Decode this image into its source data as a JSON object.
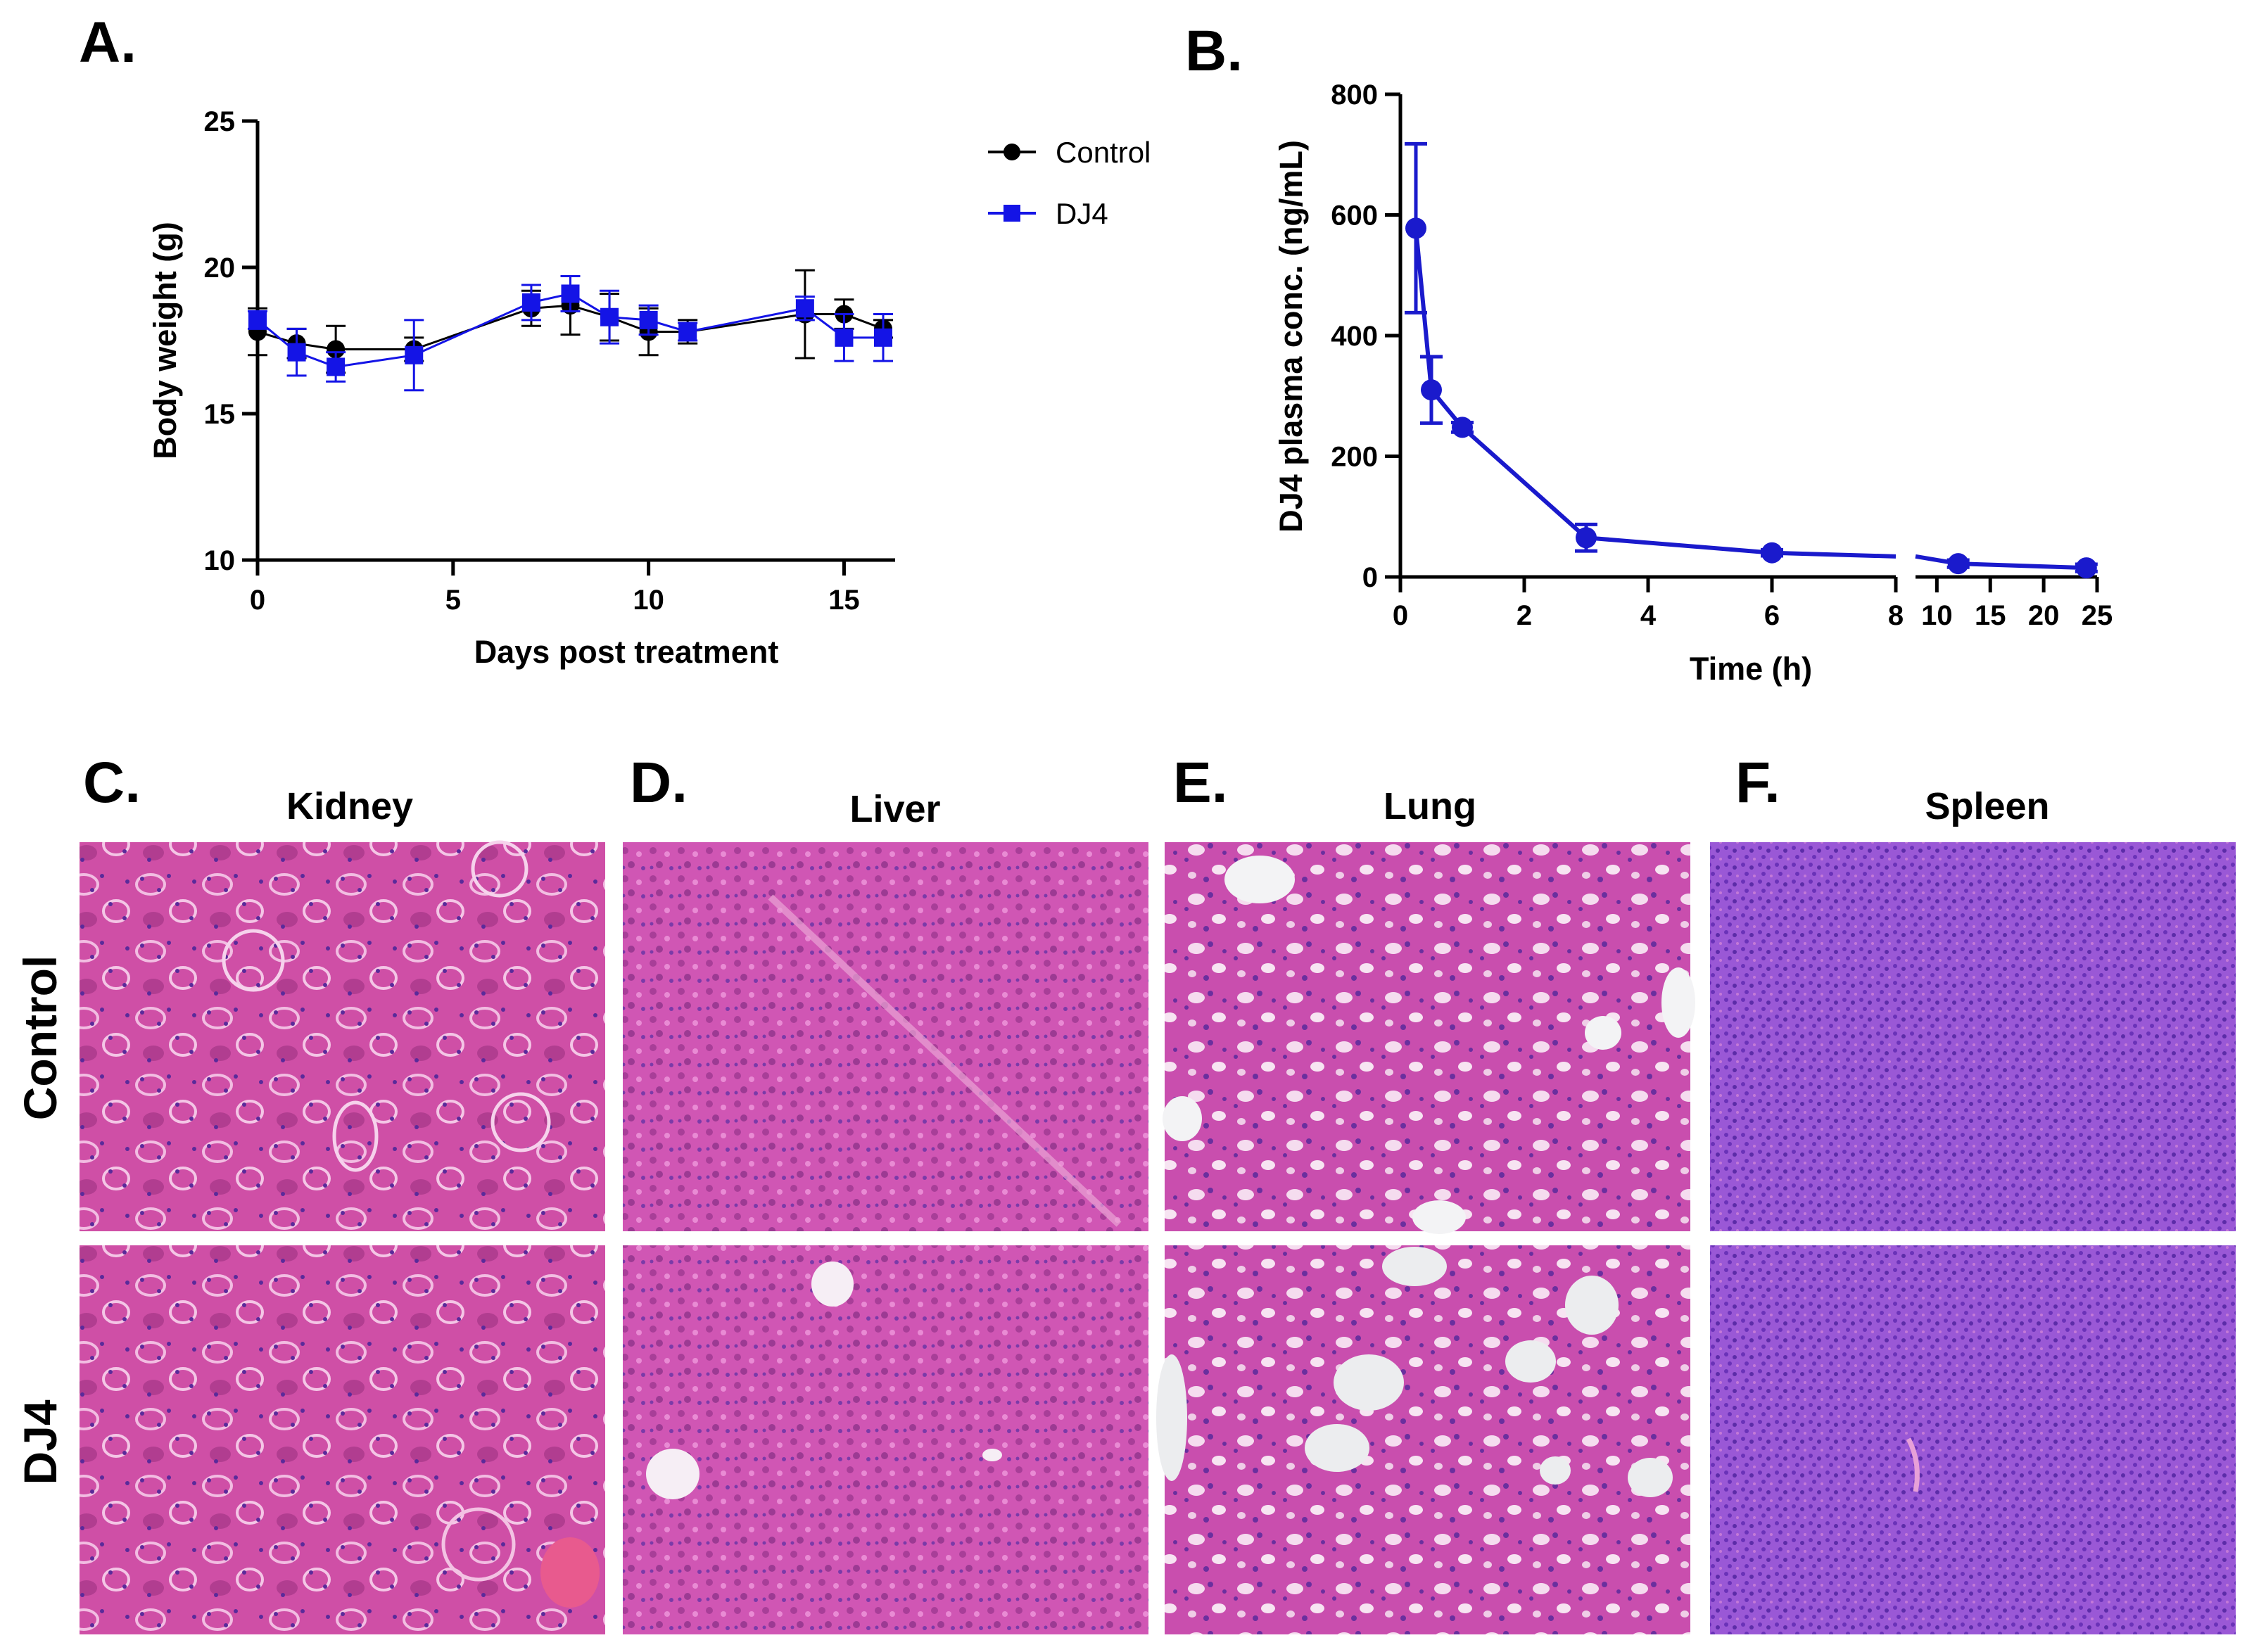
{
  "panel_labels": {
    "a": "A.",
    "b": "B.",
    "c": "C.",
    "d": "D.",
    "e": "E.",
    "f": "F."
  },
  "chart_data": [
    {
      "panel": "A.",
      "type": "line",
      "title": "",
      "xlabel": "Days post treatment",
      "ylabel": "Body weight (g)",
      "xlim": [
        0,
        16
      ],
      "ylim": [
        10,
        25
      ],
      "xticks": [
        0,
        5,
        10,
        15
      ],
      "yticks": [
        10,
        15,
        20,
        25
      ],
      "x": [
        0,
        1,
        2,
        4,
        7,
        8,
        9,
        10,
        11,
        14,
        15,
        16
      ],
      "legend_position": "top-right outside",
      "series": [
        {
          "name": "Control",
          "color": "#000000",
          "marker": "circle",
          "values": [
            17.8,
            17.4,
            17.2,
            17.2,
            18.6,
            18.7,
            18.3,
            17.8,
            17.8,
            18.4,
            18.4,
            17.9
          ],
          "errors": [
            0.8,
            0.5,
            0.8,
            0.4,
            0.6,
            1.0,
            0.8,
            0.8,
            0.4,
            1.5,
            0.5,
            0.3
          ]
        },
        {
          "name": "DJ4",
          "color": "#1414e6",
          "marker": "square",
          "values": [
            18.2,
            17.1,
            16.6,
            17.0,
            18.8,
            19.1,
            18.3,
            18.2,
            17.8,
            18.6,
            17.6,
            17.6
          ],
          "errors": [
            0.3,
            0.8,
            0.5,
            1.2,
            0.6,
            0.6,
            0.9,
            0.5,
            0.3,
            0.4,
            0.8,
            0.8
          ]
        }
      ]
    },
    {
      "panel": "B.",
      "type": "line",
      "title": "",
      "xlabel": "Time (h)",
      "ylabel": "DJ4 plasma conc. (ng/mL)",
      "ylim": [
        0,
        800
      ],
      "yticks": [
        0,
        200,
        400,
        600,
        800
      ],
      "x_segments": [
        {
          "range": [
            0,
            8
          ],
          "ticks": [
            0,
            2,
            4,
            6,
            8
          ]
        },
        {
          "range": [
            8,
            25
          ],
          "ticks": [
            10,
            15,
            20,
            25
          ]
        }
      ],
      "series": [
        {
          "name": "DJ4",
          "color": "#1a1acc",
          "x": [
            0.25,
            0.5,
            1,
            3,
            6,
            12,
            24
          ],
          "values": [
            578,
            310,
            248,
            65,
            40,
            22,
            15
          ],
          "errors": [
            140,
            55,
            8,
            22,
            5,
            6,
            6
          ]
        }
      ]
    }
  ],
  "histology": {
    "columns": [
      "Kidney",
      "Liver",
      "Lung",
      "Spleen"
    ],
    "rows": [
      "Control",
      "DJ4"
    ]
  }
}
